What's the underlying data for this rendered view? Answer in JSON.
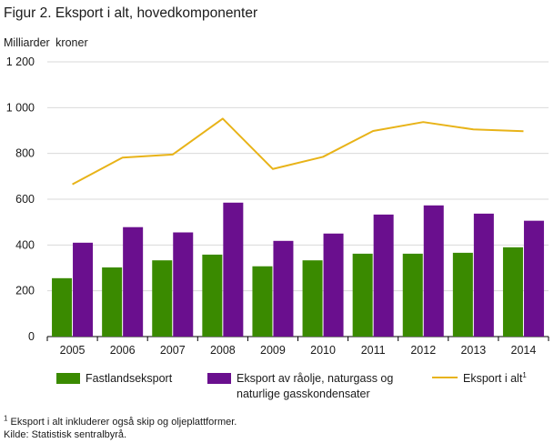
{
  "chart_data": {
    "type": "bar",
    "title": "Figur 2. Eksport i alt, hovedkomponenter",
    "ylabel": "Milliarder kroner",
    "xlabel": "",
    "ylim": [
      0,
      1200
    ],
    "yticks": [
      0,
      200,
      400,
      600,
      800,
      1000,
      1200
    ],
    "ytick_labels": [
      "0",
      "200",
      "400",
      "600",
      "800",
      "1 000",
      "1 200"
    ],
    "grid": true,
    "categories": [
      "2005",
      "2006",
      "2007",
      "2008",
      "2009",
      "2010",
      "2011",
      "2012",
      "2013",
      "2014"
    ],
    "series": [
      {
        "name": "Fastlandseksport",
        "kind": "bar",
        "color": "#3a8a00",
        "values": [
          255,
          302,
          333,
          358,
          307,
          333,
          362,
          362,
          366,
          390
        ]
      },
      {
        "name_line1": "Eksport av råolje, naturgass og",
        "name_line2": "naturlige gasskondensater",
        "kind": "bar",
        "color": "#6a0f8e",
        "values": [
          410,
          478,
          455,
          585,
          418,
          450,
          533,
          573,
          537,
          506
        ]
      },
      {
        "name": "Eksport i alt",
        "name_sup": "1",
        "kind": "line",
        "color": "#e8b318",
        "values": [
          665,
          782,
          795,
          952,
          732,
          785,
          898,
          937,
          905,
          897
        ]
      }
    ]
  },
  "footnote": {
    "note_sup": "1",
    "note_text": " Eksport i alt inkluderer også skip og oljeplattformer.",
    "source": "Kilde: Statistisk sentralbyrå."
  }
}
